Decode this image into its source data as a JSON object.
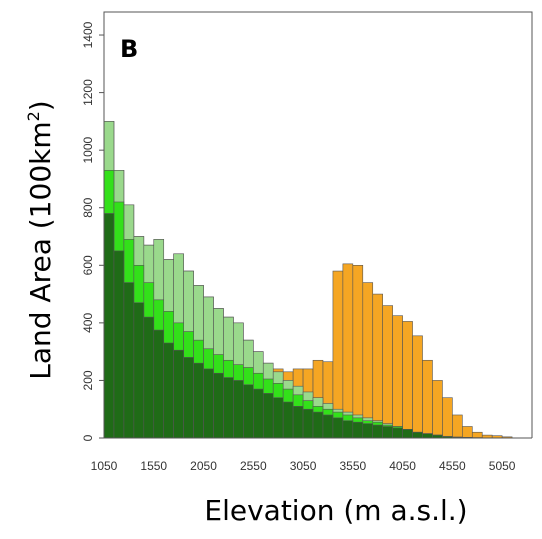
{
  "chart_data": {
    "type": "bar",
    "panel_label": "B",
    "xlabel": "Elevation (m a.s.l.)",
    "ylabel": "Land Area (100km",
    "ylabel_sup": "2",
    "ylabel_close": ")",
    "ylim": [
      0,
      1480
    ],
    "yticks": [
      0,
      200,
      400,
      600,
      800,
      1000,
      1200,
      1400
    ],
    "xticks": [
      1050,
      1550,
      2050,
      2550,
      3050,
      3550,
      4050,
      4550,
      5050
    ],
    "bin_start": 1050,
    "bin_width": 100,
    "x_extent": [
      1050,
      5350
    ],
    "stacked": false,
    "grid": false,
    "colors": {
      "orange": "#f5a623",
      "light_green": "#9ad98c",
      "bright_green": "#33e01a",
      "dark_green": "#1f6b17",
      "bar_edge": "#555555",
      "axis": "#555555"
    },
    "series": [
      {
        "color_key": "orange",
        "values": [
          1100,
          930,
          810,
          700,
          670,
          690,
          620,
          640,
          580,
          530,
          490,
          450,
          420,
          400,
          340,
          300,
          260,
          240,
          230,
          240,
          240,
          270,
          265,
          580,
          605,
          600,
          540,
          500,
          460,
          425,
          405,
          355,
          270,
          200,
          140,
          80,
          40,
          20,
          10,
          8,
          4
        ]
      },
      {
        "color_key": "light_green",
        "values": [
          1100,
          930,
          810,
          700,
          670,
          690,
          620,
          640,
          580,
          530,
          490,
          450,
          420,
          400,
          340,
          300,
          260,
          230,
          200,
          180,
          160,
          140,
          120,
          100,
          90,
          80,
          70,
          60,
          50,
          40,
          30,
          20,
          15,
          10,
          5,
          3,
          2,
          1,
          0,
          0,
          0
        ]
      },
      {
        "color_key": "bright_green",
        "values": [
          930,
          820,
          690,
          600,
          540,
          480,
          440,
          400,
          370,
          340,
          310,
          290,
          270,
          255,
          245,
          225,
          205,
          190,
          170,
          150,
          130,
          110,
          100,
          90,
          80,
          70,
          60,
          55,
          45,
          40,
          30,
          20,
          15,
          10,
          5,
          3,
          2,
          1,
          0,
          0,
          0
        ]
      },
      {
        "color_key": "dark_green",
        "values": [
          780,
          650,
          540,
          470,
          420,
          375,
          330,
          305,
          280,
          260,
          240,
          225,
          210,
          200,
          185,
          170,
          155,
          140,
          125,
          110,
          100,
          90,
          80,
          70,
          60,
          55,
          50,
          45,
          40,
          35,
          30,
          20,
          15,
          10,
          5,
          3,
          2,
          1,
          0,
          0,
          0
        ]
      }
    ]
  }
}
